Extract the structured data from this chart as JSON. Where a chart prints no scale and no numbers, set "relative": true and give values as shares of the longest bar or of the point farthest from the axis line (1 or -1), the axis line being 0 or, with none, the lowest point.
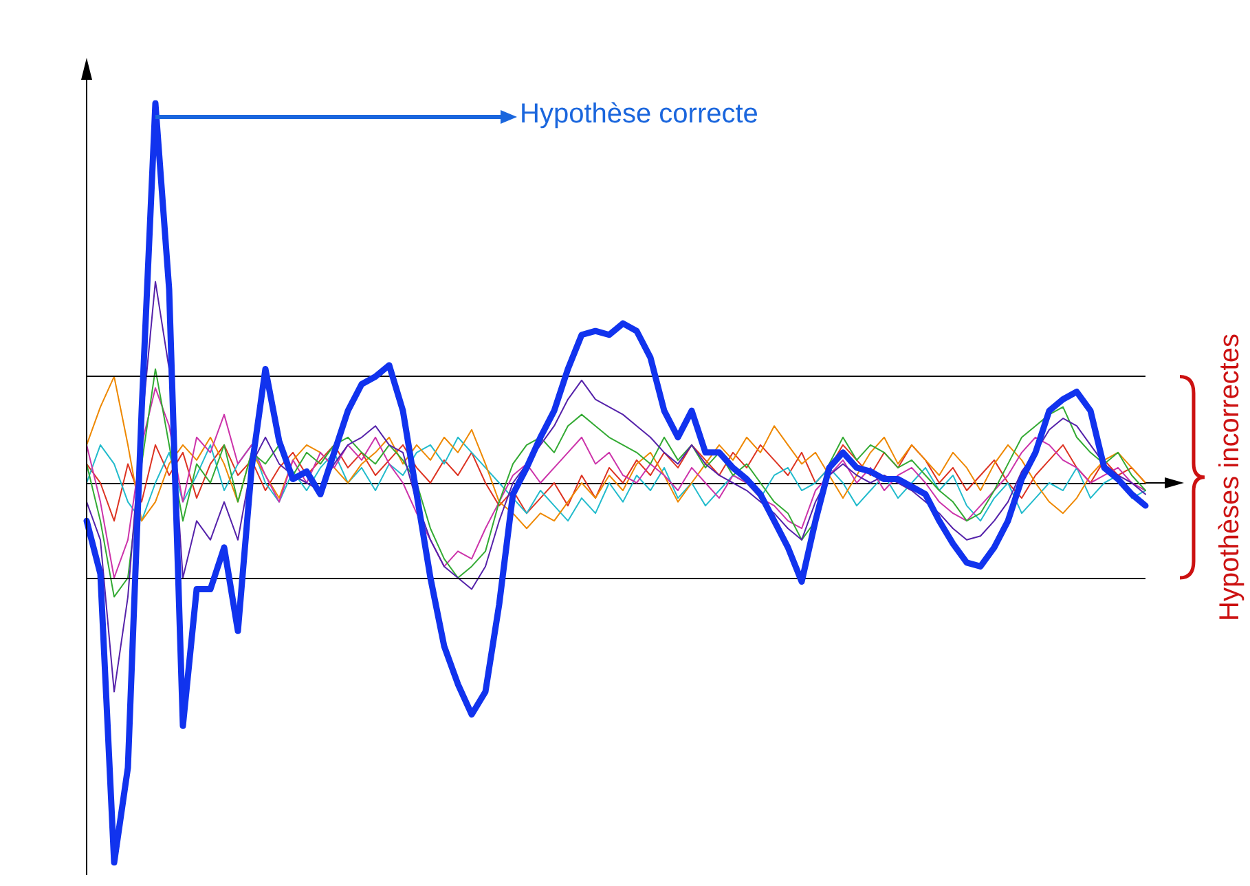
{
  "chart_data": {
    "type": "line",
    "relative": true,
    "marker": "none",
    "line_style": "solid",
    "annotations": [
      "Hypothèse correcte",
      "Hypothèses incorrectes"
    ],
    "categories": [
      null,
      null,
      null,
      null,
      null,
      null,
      null,
      null,
      null,
      null,
      null,
      null,
      null,
      null,
      null,
      null,
      null,
      null,
      null,
      null,
      null,
      null,
      null,
      null,
      null,
      null,
      null,
      null,
      null,
      null,
      null,
      null,
      null,
      null,
      null,
      null,
      null,
      null,
      null,
      null,
      null,
      null,
      null,
      null,
      null,
      null,
      null,
      null,
      null,
      null,
      null,
      null,
      null,
      null,
      null,
      null,
      null,
      null,
      null,
      null,
      null,
      null,
      null,
      null,
      null,
      null,
      null,
      null,
      null,
      null,
      null,
      null,
      null,
      null,
      null,
      null,
      null,
      null
    ],
    "ref_lines": [
      {
        "axis": "y",
        "value": 0.28,
        "color": "#000000"
      },
      {
        "axis": "y",
        "value": -0.25,
        "color": "#000000"
      }
    ],
    "series": [
      {
        "color": "#dd3322",
        "values": [
          0.05,
          0.0,
          -0.1,
          0.05,
          -0.05,
          0.1,
          0.02,
          0.08,
          -0.04,
          0.05,
          0.1,
          0.02,
          0.06,
          -0.02,
          0.04,
          0.08,
          0.02,
          0.06,
          0.1,
          0.04,
          0.08,
          0.02,
          0.06,
          0.1,
          0.04,
          0.0,
          0.06,
          0.02,
          0.08,
          0.0,
          -0.06,
          -0.02,
          -0.08,
          -0.04,
          0.0,
          -0.06,
          0.02,
          -0.04,
          0.04,
          0.0,
          0.06,
          0.02,
          0.08,
          0.04,
          0.1,
          0.06,
          0.02,
          0.08,
          0.04,
          0.1,
          0.06,
          0.02,
          0.08,
          0.0,
          0.04,
          0.1,
          0.06,
          0.02,
          0.08,
          0.04,
          0.1,
          0.06,
          0.0,
          0.04,
          -0.02,
          0.02,
          0.06,
          0.0,
          -0.04,
          0.02,
          0.06,
          0.1,
          0.04,
          0.0,
          0.06,
          0.02,
          0.04,
          0.0
        ]
      },
      {
        "color": "#22bbcc",
        "values": [
          0.0,
          0.1,
          0.05,
          -0.05,
          -0.1,
          0.0,
          0.08,
          -0.05,
          0.02,
          0.1,
          -0.02,
          0.05,
          0.1,
          0.0,
          -0.05,
          0.03,
          -0.02,
          0.04,
          0.08,
          0.0,
          0.04,
          -0.02,
          0.05,
          0.02,
          0.08,
          0.1,
          0.05,
          0.12,
          0.08,
          0.04,
          0.0,
          -0.04,
          -0.08,
          -0.02,
          -0.06,
          -0.1,
          -0.04,
          -0.08,
          0.0,
          -0.05,
          0.02,
          -0.02,
          0.04,
          -0.04,
          0.0,
          -0.06,
          -0.02,
          0.02,
          0.0,
          -0.04,
          0.02,
          0.04,
          -0.02,
          0.0,
          0.04,
          0.0,
          -0.06,
          -0.02,
          0.02,
          -0.04,
          0.0,
          0.04,
          -0.02,
          0.02,
          -0.06,
          -0.1,
          -0.04,
          0.0,
          -0.08,
          -0.04,
          0.0,
          -0.02,
          0.04,
          -0.04,
          0.0,
          0.02,
          -0.04,
          -0.02
        ]
      },
      {
        "color": "#ee8800",
        "values": [
          0.1,
          0.2,
          0.28,
          0.1,
          -0.1,
          -0.05,
          0.05,
          0.1,
          0.06,
          0.12,
          0.05,
          -0.05,
          0.08,
          0.02,
          -0.04,
          0.06,
          0.1,
          0.08,
          0.04,
          0.0,
          0.05,
          0.08,
          0.12,
          0.05,
          0.1,
          0.06,
          0.12,
          0.08,
          0.14,
          0.05,
          -0.05,
          -0.08,
          -0.12,
          -0.08,
          -0.1,
          -0.05,
          0.0,
          -0.04,
          0.02,
          -0.02,
          0.05,
          0.08,
          0.02,
          -0.05,
          0.0,
          0.05,
          0.1,
          0.06,
          0.12,
          0.08,
          0.15,
          0.1,
          0.05,
          0.08,
          0.02,
          -0.04,
          0.02,
          0.08,
          0.12,
          0.05,
          0.1,
          0.06,
          0.02,
          0.08,
          0.04,
          -0.02,
          0.05,
          0.1,
          0.06,
          0.0,
          -0.05,
          -0.08,
          -0.04,
          0.02,
          0.06,
          0.08,
          0.04,
          0.0
        ]
      },
      {
        "color": "#cc33aa",
        "values": [
          0.1,
          -0.05,
          -0.25,
          -0.15,
          0.1,
          0.25,
          0.15,
          -0.05,
          0.12,
          0.08,
          0.18,
          0.05,
          0.1,
          0.02,
          -0.05,
          0.06,
          0.0,
          0.08,
          0.04,
          0.1,
          0.06,
          0.12,
          0.05,
          0.0,
          -0.08,
          -0.15,
          -0.22,
          -0.18,
          -0.2,
          -0.12,
          -0.05,
          0.02,
          0.05,
          0.0,
          0.04,
          0.08,
          0.12,
          0.05,
          0.08,
          0.02,
          0.0,
          0.05,
          0.02,
          -0.02,
          0.04,
          0.0,
          -0.04,
          0.02,
          0.0,
          -0.04,
          -0.06,
          -0.1,
          -0.12,
          -0.02,
          0.02,
          0.06,
          0.0,
          0.04,
          -0.02,
          0.02,
          0.04,
          0.0,
          -0.05,
          -0.08,
          -0.1,
          -0.06,
          -0.02,
          0.02,
          0.08,
          0.12,
          0.1,
          0.06,
          0.04,
          0.0,
          0.02,
          0.04,
          0.0,
          -0.02
        ]
      },
      {
        "color": "#33aa33",
        "values": [
          0.05,
          -0.1,
          -0.3,
          -0.25,
          0.05,
          0.3,
          0.1,
          -0.1,
          0.05,
          0.0,
          0.1,
          -0.05,
          0.08,
          0.05,
          0.1,
          0.02,
          0.08,
          0.05,
          0.1,
          0.12,
          0.08,
          0.05,
          0.1,
          0.06,
          0.0,
          -0.12,
          -0.2,
          -0.25,
          -0.22,
          -0.18,
          -0.05,
          0.05,
          0.1,
          0.12,
          0.08,
          0.15,
          0.18,
          0.15,
          0.12,
          0.1,
          0.08,
          0.05,
          0.12,
          0.06,
          0.1,
          0.04,
          0.08,
          0.02,
          0.05,
          0.0,
          -0.05,
          -0.08,
          -0.15,
          -0.1,
          0.05,
          0.12,
          0.06,
          0.1,
          0.08,
          0.04,
          0.06,
          0.02,
          -0.02,
          -0.05,
          -0.1,
          -0.08,
          -0.02,
          0.05,
          0.12,
          0.15,
          0.18,
          0.2,
          0.12,
          0.08,
          0.05,
          0.08,
          0.02,
          -0.02
        ]
      },
      {
        "color": "#5522aa",
        "values": [
          -0.05,
          -0.15,
          -0.55,
          -0.3,
          0.15,
          0.53,
          0.3,
          -0.25,
          -0.1,
          -0.15,
          -0.05,
          -0.15,
          0.05,
          0.12,
          0.05,
          0.02,
          0.0,
          -0.02,
          0.05,
          0.1,
          0.12,
          0.15,
          0.1,
          0.08,
          -0.05,
          -0.15,
          -0.22,
          -0.25,
          -0.28,
          -0.22,
          -0.1,
          0.0,
          0.05,
          0.1,
          0.15,
          0.22,
          0.27,
          0.22,
          0.2,
          0.18,
          0.15,
          0.12,
          0.08,
          0.05,
          0.1,
          0.05,
          0.02,
          0.0,
          -0.02,
          -0.05,
          -0.08,
          -0.12,
          -0.15,
          -0.05,
          0.02,
          0.05,
          0.02,
          0.0,
          0.02,
          0.0,
          -0.02,
          -0.05,
          -0.08,
          -0.12,
          -0.15,
          -0.14,
          -0.1,
          -0.05,
          0.03,
          0.08,
          0.14,
          0.17,
          0.15,
          0.1,
          0.05,
          0.02,
          0.0,
          -0.03
        ]
      },
      {
        "color": "#1133ee",
        "values": [
          -0.1,
          -0.24,
          -1.0,
          -0.75,
          0.19,
          1.0,
          0.51,
          -0.64,
          -0.28,
          -0.28,
          -0.17,
          -0.39,
          0.04,
          0.3,
          0.11,
          0.01,
          0.03,
          -0.03,
          0.08,
          0.19,
          0.26,
          0.28,
          0.31,
          0.19,
          -0.03,
          -0.25,
          -0.43,
          -0.53,
          -0.61,
          -0.55,
          -0.32,
          -0.03,
          0.04,
          0.12,
          0.19,
          0.3,
          0.39,
          0.4,
          0.39,
          0.42,
          0.4,
          0.33,
          0.19,
          0.12,
          0.19,
          0.08,
          0.08,
          0.04,
          0.01,
          -0.03,
          -0.1,
          -0.17,
          -0.26,
          -0.1,
          0.04,
          0.08,
          0.04,
          0.03,
          0.01,
          0.01,
          -0.01,
          -0.03,
          -0.1,
          -0.16,
          -0.21,
          -0.22,
          -0.17,
          -0.1,
          0.01,
          0.08,
          0.19,
          0.22,
          0.24,
          0.19,
          0.04,
          0.01,
          -0.03,
          -0.06
        ]
      }
    ]
  }
}
